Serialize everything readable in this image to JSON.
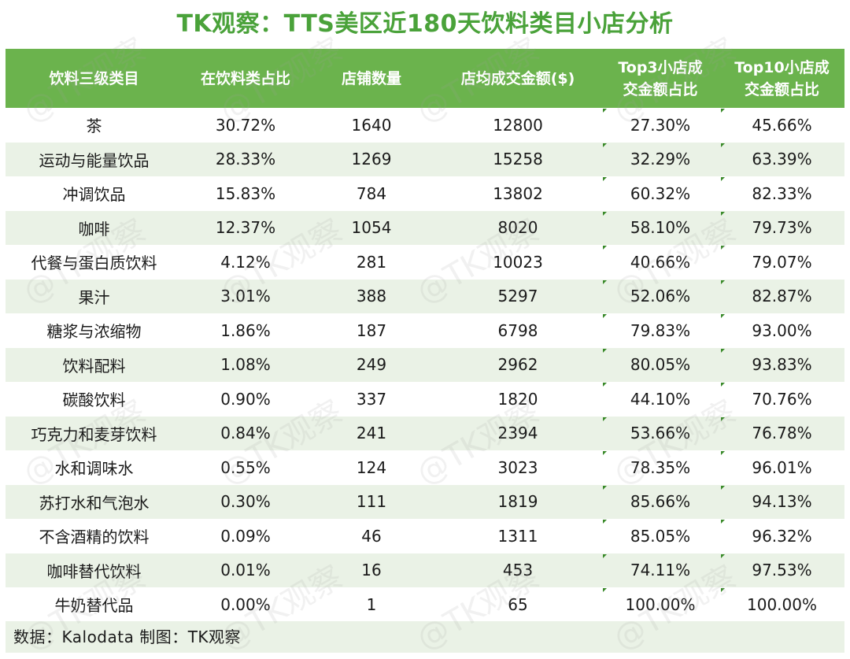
{
  "title": "TK观察：TTS美区近180天饮料类目小店分析",
  "headers": [
    "饮料三级类目",
    "在饮料类占比",
    "店铺数量",
    "店均成交金额($)",
    "Top3小店成\n交金额占比",
    "Top10小店成\n交金额占比"
  ],
  "rows": [
    [
      "茶",
      "30.72%",
      "1640",
      "12800",
      "27.30%",
      "45.66%"
    ],
    [
      "运动与能量饮品",
      "28.33%",
      "1269",
      "15258",
      "32.29%",
      "63.39%"
    ],
    [
      "冲调饮品",
      "15.83%",
      "784",
      "13802",
      "60.32%",
      "82.33%"
    ],
    [
      "咖啡",
      "12.37%",
      "1054",
      "8020",
      "58.10%",
      "79.73%"
    ],
    [
      "代餐与蛋白质饮料",
      "4.12%",
      "281",
      "10023",
      "40.66%",
      "79.07%"
    ],
    [
      "果汁",
      "3.01%",
      "388",
      "5297",
      "52.06%",
      "82.87%"
    ],
    [
      "糖浆与浓缩物",
      "1.86%",
      "187",
      "6798",
      "79.83%",
      "93.00%"
    ],
    [
      "饮料配料",
      "1.08%",
      "249",
      "2962",
      "80.05%",
      "93.83%"
    ],
    [
      "碳酸饮料",
      "0.90%",
      "337",
      "1820",
      "44.10%",
      "70.76%"
    ],
    [
      "巧克力和麦芽饮料",
      "0.84%",
      "241",
      "2394",
      "53.66%",
      "76.78%"
    ],
    [
      "水和调味水",
      "0.55%",
      "124",
      "3023",
      "78.35%",
      "96.01%"
    ],
    [
      "苏打水和气泡水",
      "0.30%",
      "111",
      "1819",
      "85.66%",
      "94.13%"
    ],
    [
      "不含酒精的饮料",
      "0.09%",
      "46",
      "1311",
      "85.05%",
      "96.32%"
    ],
    [
      "咖啡替代饮料",
      "0.01%",
      "16",
      "453",
      "74.11%",
      "97.53%"
    ],
    [
      "牛奶替代品",
      "0.00%",
      "1",
      "65",
      "100.00%",
      "100.00%"
    ]
  ],
  "footer": "数据：Kalodata  制图：TK观察",
  "watermark": "@TK观察",
  "colors": {
    "title": "#4aa23a",
    "header_bg": "#6bb34d",
    "alt_row_bg": "#eaf2e6",
    "corner_marker": "#3a8a2a"
  }
}
